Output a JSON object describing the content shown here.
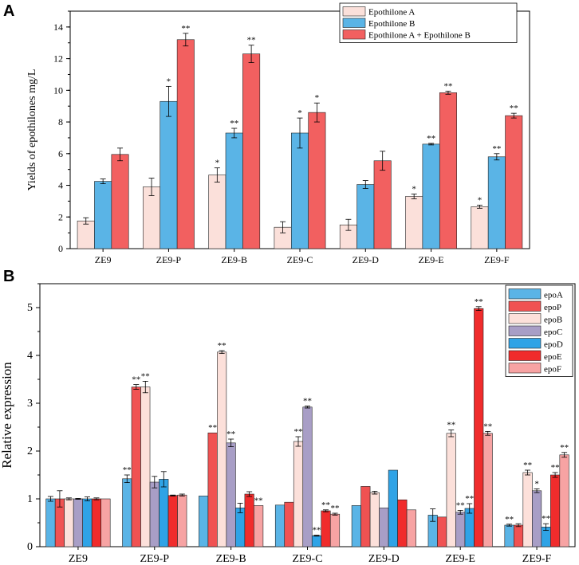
{
  "panels": {
    "a_letter": "A",
    "b_letter": "B"
  },
  "colors": {
    "epoA_panelA": "#fbe0da",
    "epoB_panelA": "#5ab4e6",
    "epoAB_panelA": "#f26060",
    "epoA": "#5ab4e6",
    "epoP": "#f05252",
    "epoB": "#fce0da",
    "epoC": "#a89ec6",
    "epoD": "#2fa3e6",
    "epoE": "#f02c2c",
    "epoF": "#f7a3a3"
  },
  "chart_data": [
    {
      "type": "bar",
      "panel": "A",
      "title": "",
      "xlabel": "",
      "ylabel": "Yields of epothilones mg/L",
      "ylim": [
        0,
        15
      ],
      "yticks": [
        "0",
        "2",
        "4",
        "6",
        "8",
        "10",
        "12",
        "14"
      ],
      "categories": [
        "ZE9",
        "ZE9-P",
        "ZE9-B",
        "ZE9-C",
        "ZE9-D",
        "ZE9-E",
        "ZE9-F"
      ],
      "legend_position": "top-right",
      "series": [
        {
          "name": "Epothilone A",
          "color_key": "epoA_panelA",
          "values": [
            1.75,
            3.9,
            4.65,
            1.35,
            1.5,
            3.3,
            2.65
          ],
          "errors": [
            0.2,
            0.55,
            0.45,
            0.35,
            0.35,
            0.15,
            0.1
          ],
          "sig": [
            "",
            "",
            "*",
            "",
            "",
            "*",
            "*"
          ]
        },
        {
          "name": "Epothilone B",
          "color_key": "epoB_panelA",
          "values": [
            4.25,
            9.3,
            7.3,
            7.3,
            4.05,
            6.6,
            5.8
          ],
          "errors": [
            0.15,
            0.95,
            0.3,
            0.95,
            0.25,
            0.05,
            0.2
          ],
          "sig": [
            "",
            "*",
            "**",
            "*",
            "",
            "**",
            "**"
          ]
        },
        {
          "name": "Epothilone A + Epothilone B",
          "color_key": "epoAB_panelA",
          "values": [
            5.95,
            13.2,
            12.3,
            8.6,
            5.55,
            9.85,
            8.4
          ],
          "errors": [
            0.4,
            0.4,
            0.55,
            0.6,
            0.6,
            0.1,
            0.15
          ],
          "sig": [
            "",
            "**",
            "**",
            "*",
            "",
            "**",
            "**"
          ]
        }
      ]
    },
    {
      "type": "bar",
      "panel": "B",
      "title": "",
      "xlabel": "",
      "ylabel": "Relative expression",
      "ylim": [
        0,
        5.5
      ],
      "yticks": [
        "0",
        "1",
        "2",
        "3",
        "4",
        "5"
      ],
      "categories": [
        "ZE9",
        "ZE9-P",
        "ZE9-B",
        "ZE9-C",
        "ZE9-D",
        "ZE9-E",
        "ZE9-F"
      ],
      "legend_position": "top-right",
      "series": [
        {
          "name": "epoA",
          "color_key": "epoA",
          "values": [
            1.0,
            1.42,
            1.06,
            0.87,
            0.86,
            0.66,
            0.45
          ],
          "errors": [
            0.05,
            0.08,
            0.0,
            0.0,
            0.0,
            0.13,
            0.02
          ],
          "sig": [
            "",
            "**",
            "",
            "",
            "",
            "",
            "**"
          ]
        },
        {
          "name": "epoP",
          "color_key": "epoP",
          "values": [
            1.0,
            3.34,
            2.38,
            0.93,
            1.26,
            0.62,
            0.45
          ],
          "errors": [
            0.17,
            0.05,
            0.0,
            0.0,
            0.0,
            0.0,
            0.03
          ],
          "sig": [
            "",
            "**",
            "**",
            "",
            "",
            "",
            ""
          ]
        },
        {
          "name": "epoB",
          "color_key": "epoB",
          "values": [
            1.0,
            3.34,
            4.07,
            2.2,
            1.13,
            2.37,
            1.55
          ],
          "errors": [
            0.02,
            0.12,
            0.03,
            0.1,
            0.03,
            0.07,
            0.05
          ],
          "sig": [
            "",
            "**",
            "**",
            "**",
            "",
            "**",
            "**"
          ]
        },
        {
          "name": "epoC",
          "color_key": "epoC",
          "values": [
            1.0,
            1.35,
            2.17,
            2.92,
            0.81,
            0.72,
            1.17
          ],
          "errors": [
            0.01,
            0.12,
            0.08,
            0.02,
            0.0,
            0.04,
            0.04
          ],
          "sig": [
            "",
            "",
            "**",
            "**",
            "",
            "**",
            "*"
          ]
        },
        {
          "name": "epoD",
          "color_key": "epoD",
          "values": [
            1.0,
            1.41,
            0.81,
            0.23,
            1.6,
            0.8,
            0.41
          ],
          "errors": [
            0.04,
            0.16,
            0.1,
            0.01,
            0.0,
            0.1,
            0.07
          ],
          "sig": [
            "",
            "",
            "",
            "**",
            "",
            "**",
            "**"
          ]
        },
        {
          "name": "epoE",
          "color_key": "epoE",
          "values": [
            1.0,
            1.07,
            1.1,
            0.75,
            0.98,
            4.98,
            1.5
          ],
          "errors": [
            0.02,
            0.01,
            0.05,
            0.02,
            0.0,
            0.04,
            0.05
          ],
          "sig": [
            "",
            "",
            "",
            "**",
            "",
            "**",
            "**"
          ]
        },
        {
          "name": "epoF",
          "color_key": "epoF",
          "values": [
            1.0,
            1.08,
            0.86,
            0.68,
            0.77,
            2.37,
            1.92
          ],
          "errors": [
            0.0,
            0.02,
            0.0,
            0.02,
            0.0,
            0.04,
            0.05
          ],
          "sig": [
            "",
            "",
            "**",
            "**",
            "",
            "**",
            "**"
          ]
        }
      ]
    }
  ]
}
